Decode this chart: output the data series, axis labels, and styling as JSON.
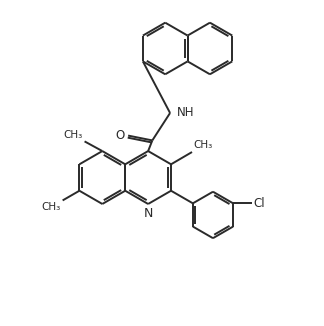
{
  "bg_color": "#ffffff",
  "line_color": "#2a2a2a",
  "line_width": 1.4,
  "font_size": 8.5,
  "figsize": [
    3.24,
    3.26
  ],
  "dpi": 100,
  "xlim": [
    0,
    10
  ],
  "ylim": [
    0,
    10
  ]
}
